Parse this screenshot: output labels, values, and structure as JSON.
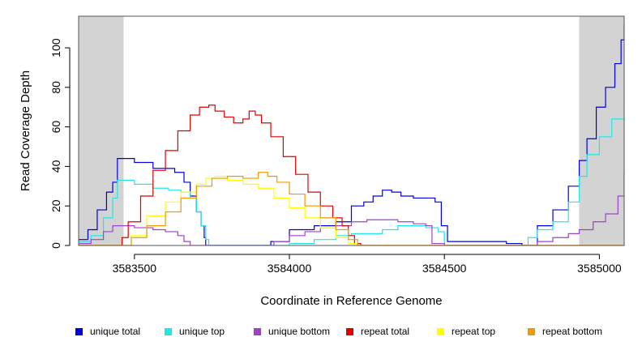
{
  "chart_data": {
    "type": "line",
    "title": "",
    "xlabel": "Coordinate in Reference Genome",
    "ylabel": "Read Coverage Depth",
    "xlim": [
      3583320,
      3585080
    ],
    "ylim": [
      0,
      116
    ],
    "xticks": [
      3583500,
      3584000,
      3584500,
      3585000
    ],
    "xtick_labels": [
      "3583500",
      "3584000",
      "3584500",
      "3585000"
    ],
    "yticks": [
      0,
      20,
      40,
      60,
      80,
      100
    ],
    "ytick_labels": [
      "0",
      "20",
      "40",
      "60",
      "80",
      "100"
    ],
    "shaded_regions": [
      [
        3583320,
        3583465
      ],
      [
        3584935,
        3585080
      ]
    ],
    "shade_color": "#d3d3d3",
    "series": [
      {
        "name": "unique total",
        "color": "#0000dd",
        "x": [
          3583320,
          3583350,
          3583380,
          3583410,
          3583430,
          3583445,
          3583465,
          3583500,
          3583560,
          3583610,
          3583630,
          3583660,
          3583680,
          3583700,
          3583715,
          3583725,
          3583730,
          3583740,
          3583800,
          3583900,
          3583920,
          3583940,
          3584000,
          3584080,
          3584150,
          3584200,
          3584240,
          3584270,
          3584300,
          3584330,
          3584360,
          3584400,
          3584440,
          3584470,
          3584490,
          3584510,
          3584600,
          3584700,
          3584750,
          3584800,
          3584850,
          3584900,
          3584935,
          3584960,
          3584990,
          3585020,
          3585050,
          3585070,
          3585080
        ],
        "values": [
          3,
          8,
          18,
          27,
          32,
          44,
          44,
          42,
          39,
          39,
          37,
          32,
          25,
          17,
          10,
          4,
          0,
          0,
          0,
          0,
          0,
          2,
          8,
          10,
          12,
          20,
          22,
          25,
          28,
          27,
          25,
          24,
          24,
          22,
          10,
          2,
          2,
          1,
          0,
          10,
          18,
          30,
          43,
          54,
          70,
          80,
          92,
          104,
          112
        ]
      },
      {
        "name": "unique top",
        "color": "#22e6e6",
        "x": [
          3583320,
          3583360,
          3583400,
          3583430,
          3583445,
          3583465,
          3583500,
          3583560,
          3583610,
          3583650,
          3583680,
          3583700,
          3583715,
          3583730,
          3583740,
          3583900,
          3583940,
          3584000,
          3584080,
          3584150,
          3584200,
          3584250,
          3584300,
          3584350,
          3584400,
          3584440,
          3584480,
          3584500,
          3584600,
          3584740,
          3584770,
          3584800,
          3584850,
          3584900,
          3584935,
          3584960,
          3585000,
          3585040,
          3585080
        ],
        "values": [
          2,
          5,
          14,
          24,
          33,
          33,
          31,
          29,
          28,
          27,
          24,
          17,
          10,
          3,
          0,
          0,
          0,
          1,
          3,
          5,
          6,
          6,
          8,
          10,
          10,
          9,
          7,
          0,
          0,
          0,
          4,
          8,
          12,
          22,
          35,
          46,
          55,
          64,
          73
        ]
      },
      {
        "name": "unique bottom",
        "color": "#a040d0",
        "x": [
          3583320,
          3583360,
          3583400,
          3583430,
          3583465,
          3583500,
          3583560,
          3583600,
          3583640,
          3583660,
          3583680,
          3583700,
          3583900,
          3583950,
          3584000,
          3584050,
          3584100,
          3584150,
          3584200,
          3584250,
          3584300,
          3584350,
          3584400,
          3584440,
          3584460,
          3584500,
          3584760,
          3584800,
          3584850,
          3584900,
          3584935,
          3584980,
          3585020,
          3585060,
          3585080
        ],
        "values": [
          1,
          3,
          7,
          10,
          10,
          9,
          8,
          7,
          5,
          2,
          0,
          0,
          0,
          2,
          5,
          7,
          9,
          10,
          12,
          13,
          13,
          12,
          11,
          10,
          1,
          0,
          0,
          2,
          4,
          6,
          8,
          12,
          16,
          25,
          38
        ]
      },
      {
        "name": "repeat total",
        "color": "#e00000",
        "x": [
          3583320,
          3583440,
          3583460,
          3583480,
          3583520,
          3583560,
          3583600,
          3583640,
          3583680,
          3583710,
          3583740,
          3583760,
          3583790,
          3583820,
          3583850,
          3583870,
          3583890,
          3583910,
          3583940,
          3583980,
          3584020,
          3584060,
          3584100,
          3584140,
          3584170,
          3584190,
          3584210,
          3584230,
          3585080
        ],
        "values": [
          0,
          0,
          4,
          12,
          25,
          38,
          48,
          58,
          66,
          70,
          71,
          68,
          65,
          62,
          64,
          68,
          66,
          62,
          55,
          45,
          36,
          27,
          20,
          14,
          10,
          5,
          1,
          0,
          0
        ]
      },
      {
        "name": "repeat top",
        "color": "#ffff00",
        "x": [
          3583320,
          3583460,
          3583490,
          3583540,
          3583600,
          3583650,
          3583700,
          3583730,
          3583760,
          3583800,
          3583850,
          3583900,
          3583950,
          3584000,
          3584050,
          3584100,
          3584150,
          3584190,
          3584220,
          3585080
        ],
        "values": [
          0,
          0,
          5,
          15,
          22,
          27,
          31,
          34,
          35,
          33,
          31,
          29,
          24,
          19,
          14,
          9,
          4,
          1,
          0,
          0
        ]
      },
      {
        "name": "repeat bottom",
        "color": "#ee9a00",
        "x": [
          3583320,
          3583460,
          3583490,
          3583540,
          3583600,
          3583650,
          3583700,
          3583750,
          3583800,
          3583850,
          3583900,
          3583930,
          3583960,
          3584000,
          3584050,
          3584100,
          3584150,
          3584190,
          3584220,
          3585080
        ],
        "values": [
          0,
          0,
          4,
          10,
          17,
          24,
          30,
          34,
          35,
          34,
          37,
          35,
          32,
          26,
          20,
          14,
          8,
          3,
          0,
          0
        ]
      }
    ],
    "legend_position": "bottom"
  }
}
